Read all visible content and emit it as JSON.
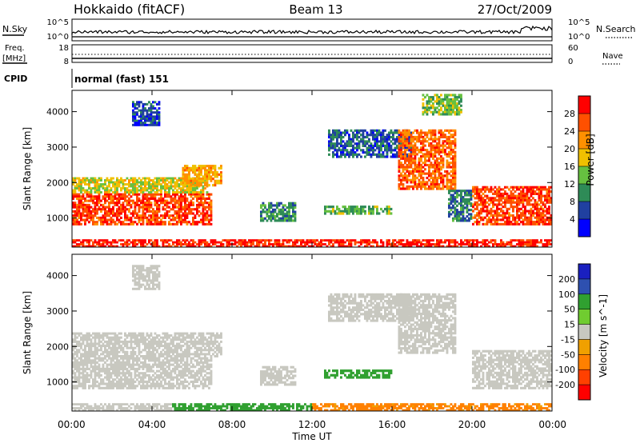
{
  "header": {
    "station": "Hokkaido (fitACF)",
    "beam": "Beam 13",
    "date": "27/Oct/2009"
  },
  "top_panel": {
    "left_label": "N.Sky",
    "left_ticks": [
      "10^5",
      "10^0"
    ],
    "right_label": "N.Search",
    "right_ticks": [
      "10^5",
      "10^0"
    ]
  },
  "freq_panel": {
    "left_label": "Freq.",
    "left_unit": "[MHz]",
    "left_ticks": [
      "18",
      "8"
    ],
    "right_label": "Nave",
    "right_ticks": [
      "60",
      "0"
    ]
  },
  "cpid": {
    "label": "CPID",
    "value": "normal (fast) 151"
  },
  "colors": {
    "power": [
      "#0000ff",
      "#2040a0",
      "#2e8b57",
      "#66c040",
      "#f0c000",
      "#ff9000",
      "#ff5000",
      "#ff0000"
    ],
    "velocity": [
      "#1a20c0",
      "#2e50b0",
      "#30a030",
      "#70cc30",
      "#c8c8c0",
      "#f0a000",
      "#ff8000",
      "#ff4000",
      "#ff0000"
    ]
  },
  "chart_data": [
    {
      "type": "heatmap",
      "quantity": "power",
      "ylabel": "Slant Range [km]",
      "yticks": [
        1000,
        2000,
        3000,
        4000
      ],
      "ylim": [
        180,
        4600
      ],
      "xlim": [
        0,
        24
      ],
      "colorbar_label": "Power [dB]",
      "colorbar_ticks": [
        4,
        8,
        12,
        16,
        20,
        24,
        28
      ],
      "colorbar_range": [
        0,
        32
      ],
      "regions": [
        {
          "t0": 0.0,
          "t1": 7.0,
          "r0": 800,
          "r1": 1700,
          "v": 27
        },
        {
          "t0": 0.0,
          "t1": 6.8,
          "r0": 1700,
          "r1": 2150,
          "v": 17
        },
        {
          "t0": 5.5,
          "t1": 7.5,
          "r0": 1900,
          "r1": 2500,
          "v": 21
        },
        {
          "t0": 3.0,
          "t1": 4.4,
          "r0": 3600,
          "r1": 4300,
          "v": 6
        },
        {
          "t0": 9.4,
          "t1": 11.2,
          "r0": 900,
          "r1": 1450,
          "v": 10
        },
        {
          "t0": 12.6,
          "t1": 16.0,
          "r0": 1100,
          "r1": 1350,
          "v": 13
        },
        {
          "t0": 12.8,
          "t1": 17.0,
          "r0": 2700,
          "r1": 3500,
          "v": 7
        },
        {
          "t0": 16.3,
          "t1": 19.2,
          "r0": 1800,
          "r1": 3500,
          "v": 25
        },
        {
          "t0": 18.8,
          "t1": 20.0,
          "r0": 900,
          "r1": 1800,
          "v": 9
        },
        {
          "t0": 20.0,
          "t1": 24.0,
          "r0": 800,
          "r1": 1900,
          "v": 27
        },
        {
          "t0": 17.5,
          "t1": 19.5,
          "r0": 3900,
          "r1": 4500,
          "v": 14
        },
        {
          "t0": 0.0,
          "t1": 24.0,
          "r0": 180,
          "r1": 400,
          "v": 29
        }
      ]
    },
    {
      "type": "heatmap",
      "quantity": "velocity",
      "xlabel": "Time UT",
      "ylabel": "Slant Range [km]",
      "yticks": [
        1000,
        2000,
        3000,
        4000
      ],
      "ylim": [
        180,
        4600
      ],
      "xlim": [
        0,
        24
      ],
      "xticks": [
        "00:00",
        "04:00",
        "08:00",
        "12:00",
        "16:00",
        "20:00",
        "00:00"
      ],
      "colorbar_label": "Velocity [m s^-1]",
      "colorbar_ticks": [
        200,
        100,
        50,
        15,
        -15,
        -50,
        -100,
        -200
      ],
      "regions": [
        {
          "t0": 0.0,
          "t1": 7.0,
          "r0": 800,
          "r1": 1700,
          "v": 0
        },
        {
          "t0": 0.0,
          "t1": 7.5,
          "r0": 1700,
          "r1": 2400,
          "v": 0
        },
        {
          "t0": 3.0,
          "t1": 4.4,
          "r0": 3600,
          "r1": 4300,
          "v": 0
        },
        {
          "t0": 9.4,
          "t1": 11.2,
          "r0": 900,
          "r1": 1450,
          "v": 0
        },
        {
          "t0": 12.6,
          "t1": 16.0,
          "r0": 1100,
          "r1": 1350,
          "v": 60
        },
        {
          "t0": 12.8,
          "t1": 17.0,
          "r0": 2700,
          "r1": 3500,
          "v": 0
        },
        {
          "t0": 16.3,
          "t1": 19.2,
          "r0": 1800,
          "r1": 3500,
          "v": 0
        },
        {
          "t0": 20.0,
          "t1": 24.0,
          "r0": 800,
          "r1": 1900,
          "v": 0
        },
        {
          "t0": 0.0,
          "t1": 5.0,
          "r0": 180,
          "r1": 400,
          "v": 0
        },
        {
          "t0": 5.0,
          "t1": 12.0,
          "r0": 180,
          "r1": 400,
          "v": 60
        },
        {
          "t0": 12.0,
          "t1": 24.0,
          "r0": 180,
          "r1": 400,
          "v": -40
        }
      ]
    }
  ]
}
